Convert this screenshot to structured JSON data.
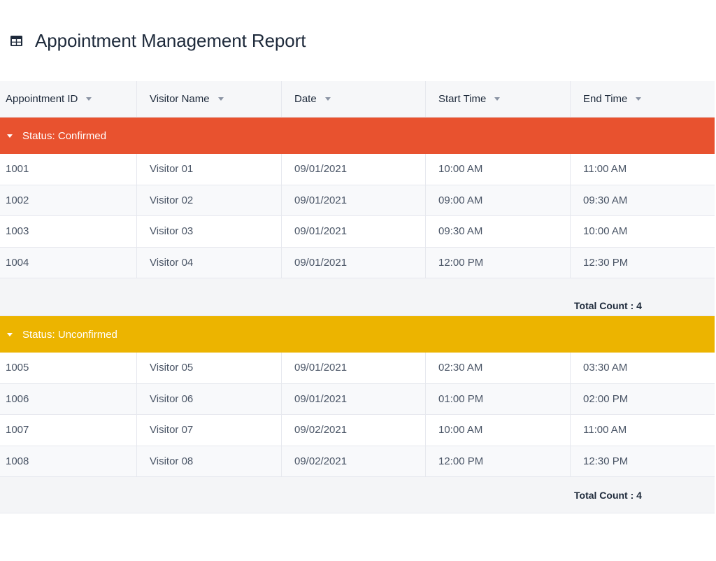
{
  "page": {
    "title": "Appointment Management Report",
    "title_icon": "table-icon"
  },
  "columns": [
    {
      "label": "Appointment ID",
      "sort_icon": "caret-down-icon"
    },
    {
      "label": "Visitor Name",
      "sort_icon": "caret-down-icon"
    },
    {
      "label": "Date",
      "sort_icon": "caret-down-icon"
    },
    {
      "label": "Start Time",
      "sort_icon": "caret-down-icon"
    },
    {
      "label": "End Time",
      "sort_icon": "caret-down-icon"
    }
  ],
  "groups": [
    {
      "label": "Status: Confirmed",
      "color": "#e8522f",
      "rows": [
        [
          "1001",
          "Visitor 01",
          "09/01/2021",
          "10:00 AM",
          "11:00 AM"
        ],
        [
          "1002",
          "Visitor 02",
          "09/01/2021",
          "09:00 AM",
          "09:30 AM"
        ],
        [
          "1003",
          "Visitor 03",
          "09/01/2021",
          "09:30 AM",
          "10:00 AM"
        ],
        [
          "1004",
          "Visitor 04",
          "09/01/2021",
          "12:00 PM",
          "12:30 PM"
        ]
      ],
      "summary": "Total Count : 4"
    },
    {
      "label": "Status: Unconfirmed",
      "color": "#ecb400",
      "rows": [
        [
          "1005",
          "Visitor 05",
          "09/01/2021",
          "02:30 AM",
          "03:30 AM"
        ],
        [
          "1006",
          "Visitor 06",
          "09/01/2021",
          "01:00 PM",
          "02:00 PM"
        ],
        [
          "1007",
          "Visitor 07",
          "09/02/2021",
          "10:00 AM",
          "11:00 AM"
        ],
        [
          "1008",
          "Visitor 08",
          "09/02/2021",
          "12:00 PM",
          "12:30 PM"
        ]
      ],
      "summary": "Total Count : 4"
    }
  ]
}
